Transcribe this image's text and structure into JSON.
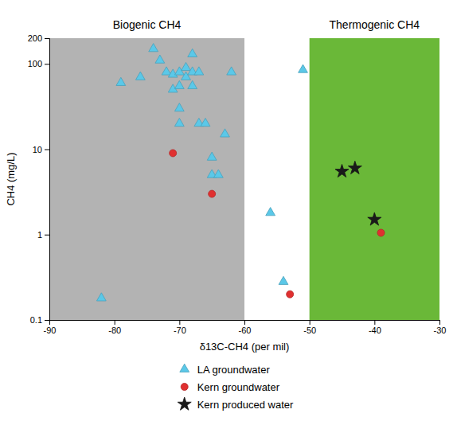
{
  "chart_data": {
    "type": "scatter",
    "xlabel": "δ13C-CH4 (per mil)",
    "ylabel": "CH4 (mg/L)",
    "log": "y",
    "grid": false,
    "legend": "bottom",
    "xlim": [
      -90,
      -30
    ],
    "xticks": [
      -90,
      -80,
      -70,
      -60,
      -50,
      -40,
      -30
    ],
    "ylim": [
      0.1,
      200
    ],
    "yticks": [
      0.1,
      1,
      10,
      100,
      200
    ],
    "regions": [
      {
        "label": "Biogenic CH4",
        "x": [
          -90,
          -60
        ],
        "color": "#b3b3b3"
      },
      {
        "label": "Thermogenic CH4",
        "x": [
          -50,
          -30
        ],
        "color": "#6ab838"
      }
    ],
    "series": [
      {
        "name": "LA groundwater",
        "color": "#5bc8e8",
        "marker": "triangle",
        "x": [
          -82,
          -79,
          -76,
          -74,
          -73,
          -72,
          -71,
          -71,
          -70,
          -70,
          -70,
          -70,
          -69,
          -69,
          -68,
          -68,
          -68,
          -67,
          -67,
          -66,
          -65,
          -65,
          -64,
          -63,
          -62,
          -56,
          -54,
          -51
        ],
        "values": [
          0.18,
          60,
          70,
          150,
          110,
          80,
          75,
          50,
          80,
          55,
          30,
          20,
          90,
          70,
          80,
          55,
          130,
          80,
          20,
          20,
          8,
          5,
          5,
          15,
          80,
          1.8,
          0.28,
          85
        ]
      },
      {
        "name": "Kern groundwater",
        "color": "#e03030",
        "marker": "circle",
        "x": [
          -71,
          -65,
          -53,
          -39
        ],
        "values": [
          9.0,
          3.0,
          0.2,
          1.05
        ]
      },
      {
        "name": "Kern produced water",
        "color": "#1a1a1a",
        "marker": "star",
        "x": [
          -45,
          -43,
          -40
        ],
        "values": [
          5.5,
          6.0,
          1.5
        ]
      }
    ]
  }
}
